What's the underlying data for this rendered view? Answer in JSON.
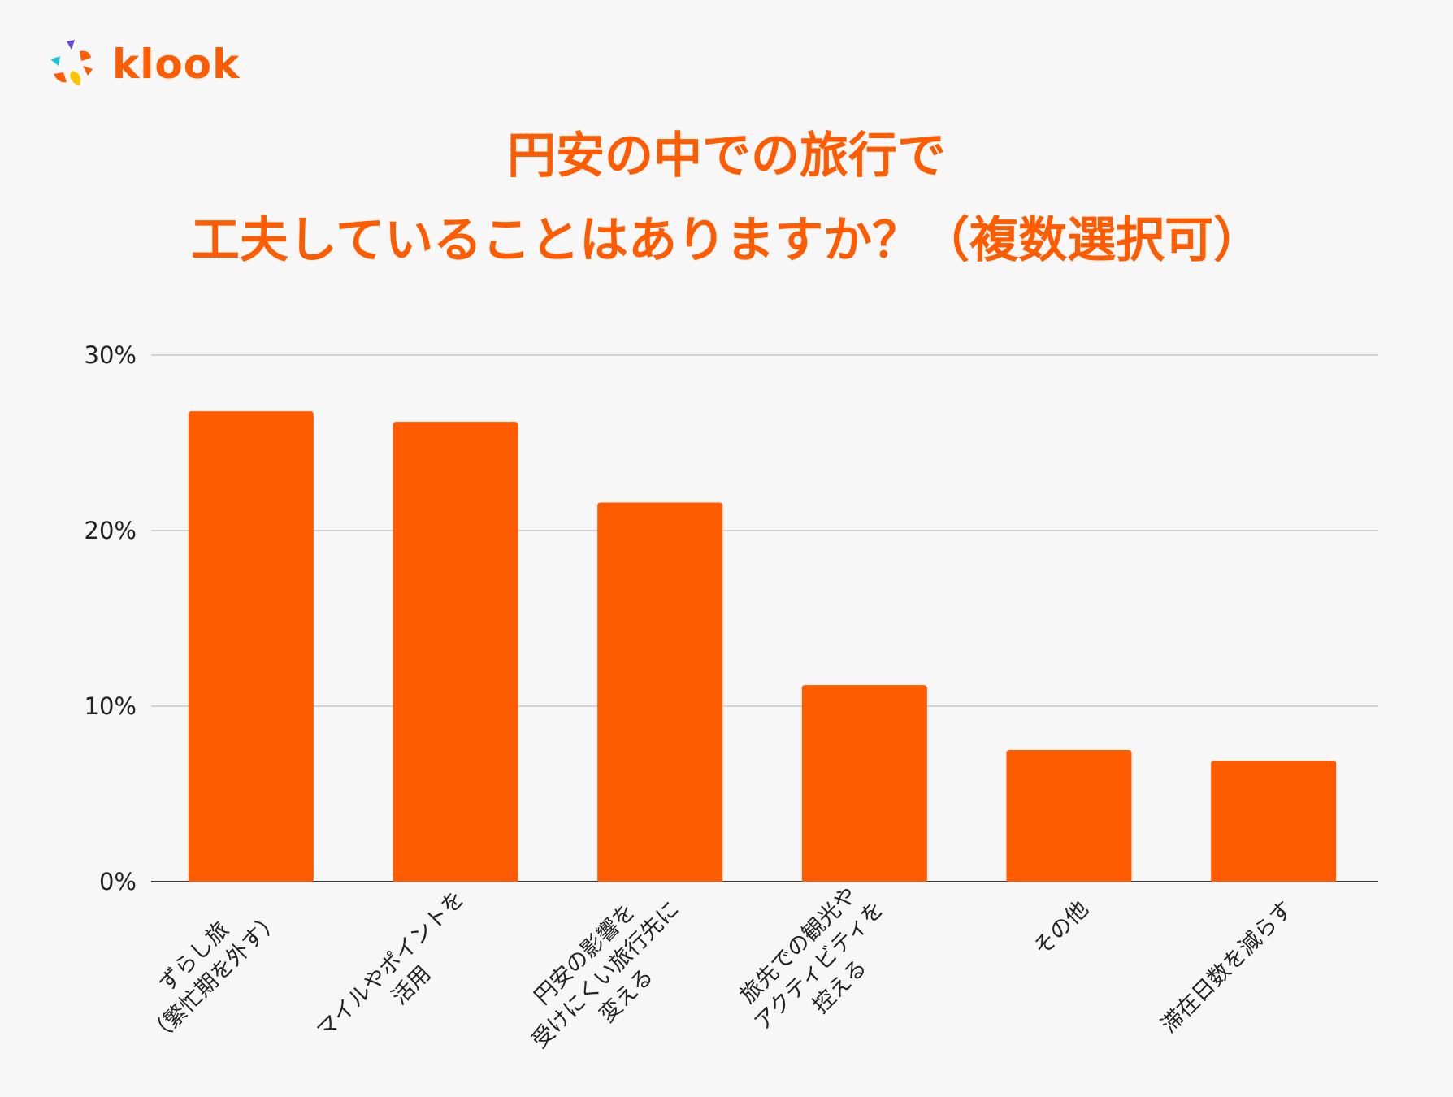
{
  "brand": {
    "name": "klook",
    "color": "#ff5b00"
  },
  "header": {
    "title_line1": "円安の中での旅行で",
    "title_line2": "工夫していることはありますか？（複数選択可）"
  },
  "chart_data": {
    "type": "bar",
    "categories": [
      [
        "ずらし旅",
        "（繁忙期を外す）"
      ],
      [
        "マイルやポイントを",
        "活用"
      ],
      [
        "円安の影響を",
        "受けにくい旅行先に",
        "変える"
      ],
      [
        "旅先での観光や",
        "アクティビティを",
        "控える"
      ],
      [
        "その他"
      ],
      [
        "滞在日数を減らす"
      ]
    ],
    "values": [
      26.8,
      26.2,
      21.6,
      11.2,
      7.5,
      6.9
    ],
    "unit": "%",
    "ylim": [
      0,
      30
    ],
    "yticks": [
      "0%",
      "10%",
      "20%",
      "30%"
    ],
    "ytick_values": [
      0,
      10,
      20,
      30
    ],
    "grid": true,
    "bar_color": "#ff5b00",
    "title": "円安の中での旅行で 工夫していることはありますか？（複数選択可）",
    "xlabel": "",
    "ylabel": ""
  }
}
